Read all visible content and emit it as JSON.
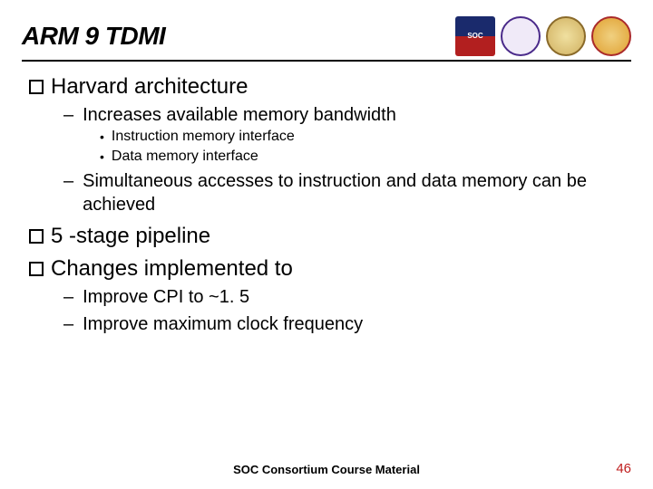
{
  "title": "ARM 9 TDMI",
  "logos": [
    {
      "name": "soc-logo",
      "text": "SOC"
    },
    {
      "name": "cic-logo",
      "text": ""
    },
    {
      "name": "ntu-logo",
      "text": ""
    },
    {
      "name": "ntu2-logo",
      "text": ""
    }
  ],
  "items": [
    {
      "text": "Harvard architecture",
      "children": [
        {
          "text": "Increases available memory bandwidth",
          "children": [
            {
              "text": "Instruction memory interface"
            },
            {
              "text": "Data memory interface"
            }
          ]
        },
        {
          "text": "Simultaneous accesses to instruction and data memory can be achieved",
          "children": []
        }
      ]
    },
    {
      "text": "5 -stage pipeline",
      "children": []
    },
    {
      "text": "Changes implemented to",
      "children": [
        {
          "text": "Improve CPI to ~1. 5",
          "children": []
        },
        {
          "text": "Improve maximum clock frequency",
          "children": []
        }
      ]
    }
  ],
  "footer": "SOC Consortium Course Material",
  "page_number": "46",
  "colors": {
    "text": "#000000",
    "page_num": "#c02020",
    "background": "#ffffff"
  },
  "fonts": {
    "title_size": 28,
    "level1_size": 24,
    "level2_size": 20,
    "level3_size": 16,
    "footer_size": 13
  }
}
